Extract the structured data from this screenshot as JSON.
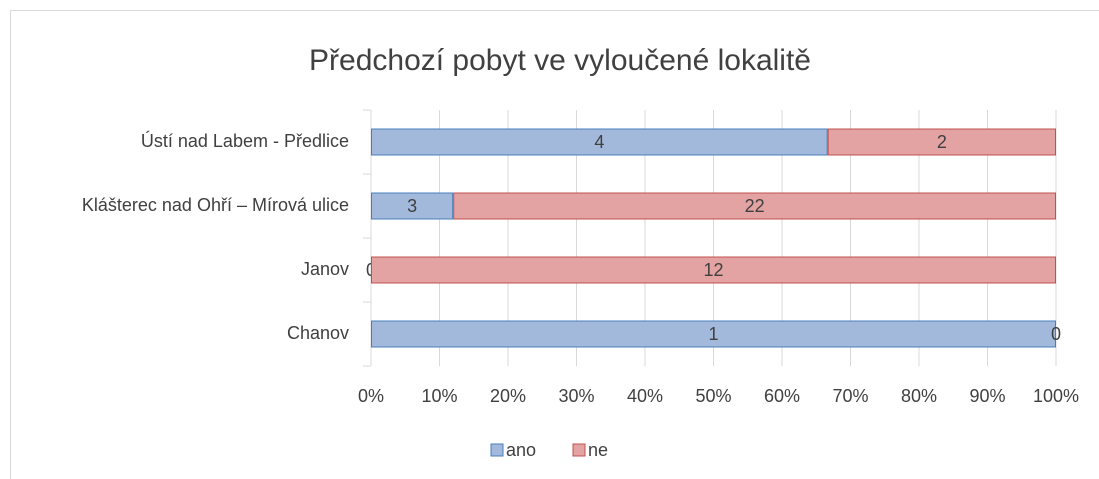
{
  "chart_data": {
    "type": "bar",
    "orientation": "horizontal",
    "stacked": "percent",
    "title": "Předchozí pobyt ve vyloučené lokalitě",
    "categories": [
      "Ústí nad Labem - Předlice",
      "Klášterec nad Ohří – Mírová ulice",
      "Janov",
      "Chanov"
    ],
    "series": [
      {
        "name": "ano",
        "color": "#a3b9dc",
        "values": [
          4,
          3,
          0,
          1
        ]
      },
      {
        "name": "ne",
        "color": "#e3a3a2",
        "values": [
          2,
          22,
          12,
          0
        ]
      }
    ],
    "xlim": [
      0,
      100
    ],
    "xticks": [
      {
        "value": 0,
        "label": "0%"
      },
      {
        "value": 10,
        "label": "10%"
      },
      {
        "value": 20,
        "label": "20%"
      },
      {
        "value": 30,
        "label": "30%"
      },
      {
        "value": 40,
        "label": "40%"
      },
      {
        "value": 50,
        "label": "50%"
      },
      {
        "value": 60,
        "label": "60%"
      },
      {
        "value": 70,
        "label": "70%"
      },
      {
        "value": 80,
        "label": "80%"
      },
      {
        "value": 90,
        "label": "90%"
      },
      {
        "value": 100,
        "label": "100%"
      }
    ],
    "grid": true,
    "legend": "bottom"
  }
}
